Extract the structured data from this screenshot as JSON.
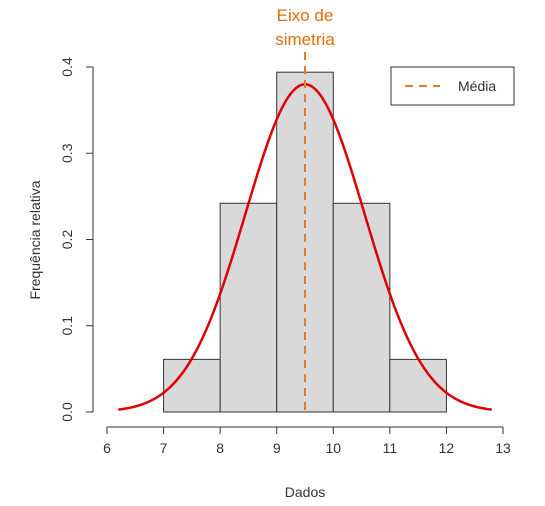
{
  "chart_data": {
    "type": "bar",
    "xlabel": "Dados",
    "ylabel": "Frequência relativa",
    "xlim": [
      6,
      13
    ],
    "ylim": [
      0,
      0.4
    ],
    "x_ticks": [
      6,
      7,
      8,
      9,
      10,
      11,
      12,
      13
    ],
    "y_ticks": [
      "0.0",
      "0.1",
      "0.2",
      "0.3",
      "0.4"
    ],
    "bins": [
      {
        "from": 7,
        "to": 8,
        "value": 0.061
      },
      {
        "from": 8,
        "to": 9,
        "value": 0.242
      },
      {
        "from": 9,
        "to": 10,
        "value": 0.394
      },
      {
        "from": 10,
        "to": 11,
        "value": 0.242
      },
      {
        "from": 11,
        "to": 12,
        "value": 0.061
      }
    ],
    "density_curve": {
      "type": "normal",
      "mean": 9.5,
      "sd": 1.05,
      "x_range": [
        6.2,
        12.8
      ],
      "color": "#E00000"
    },
    "mean_line": {
      "x": 9.5,
      "color": "#E07B28"
    },
    "legend": {
      "position": "top-right",
      "entries": [
        "Média"
      ]
    },
    "annotation": {
      "line1": "Eixo de",
      "line2": "simetria",
      "color": "#E46C0A"
    },
    "bar_fill": "#D9D9D9",
    "bar_stroke": "#333333"
  }
}
